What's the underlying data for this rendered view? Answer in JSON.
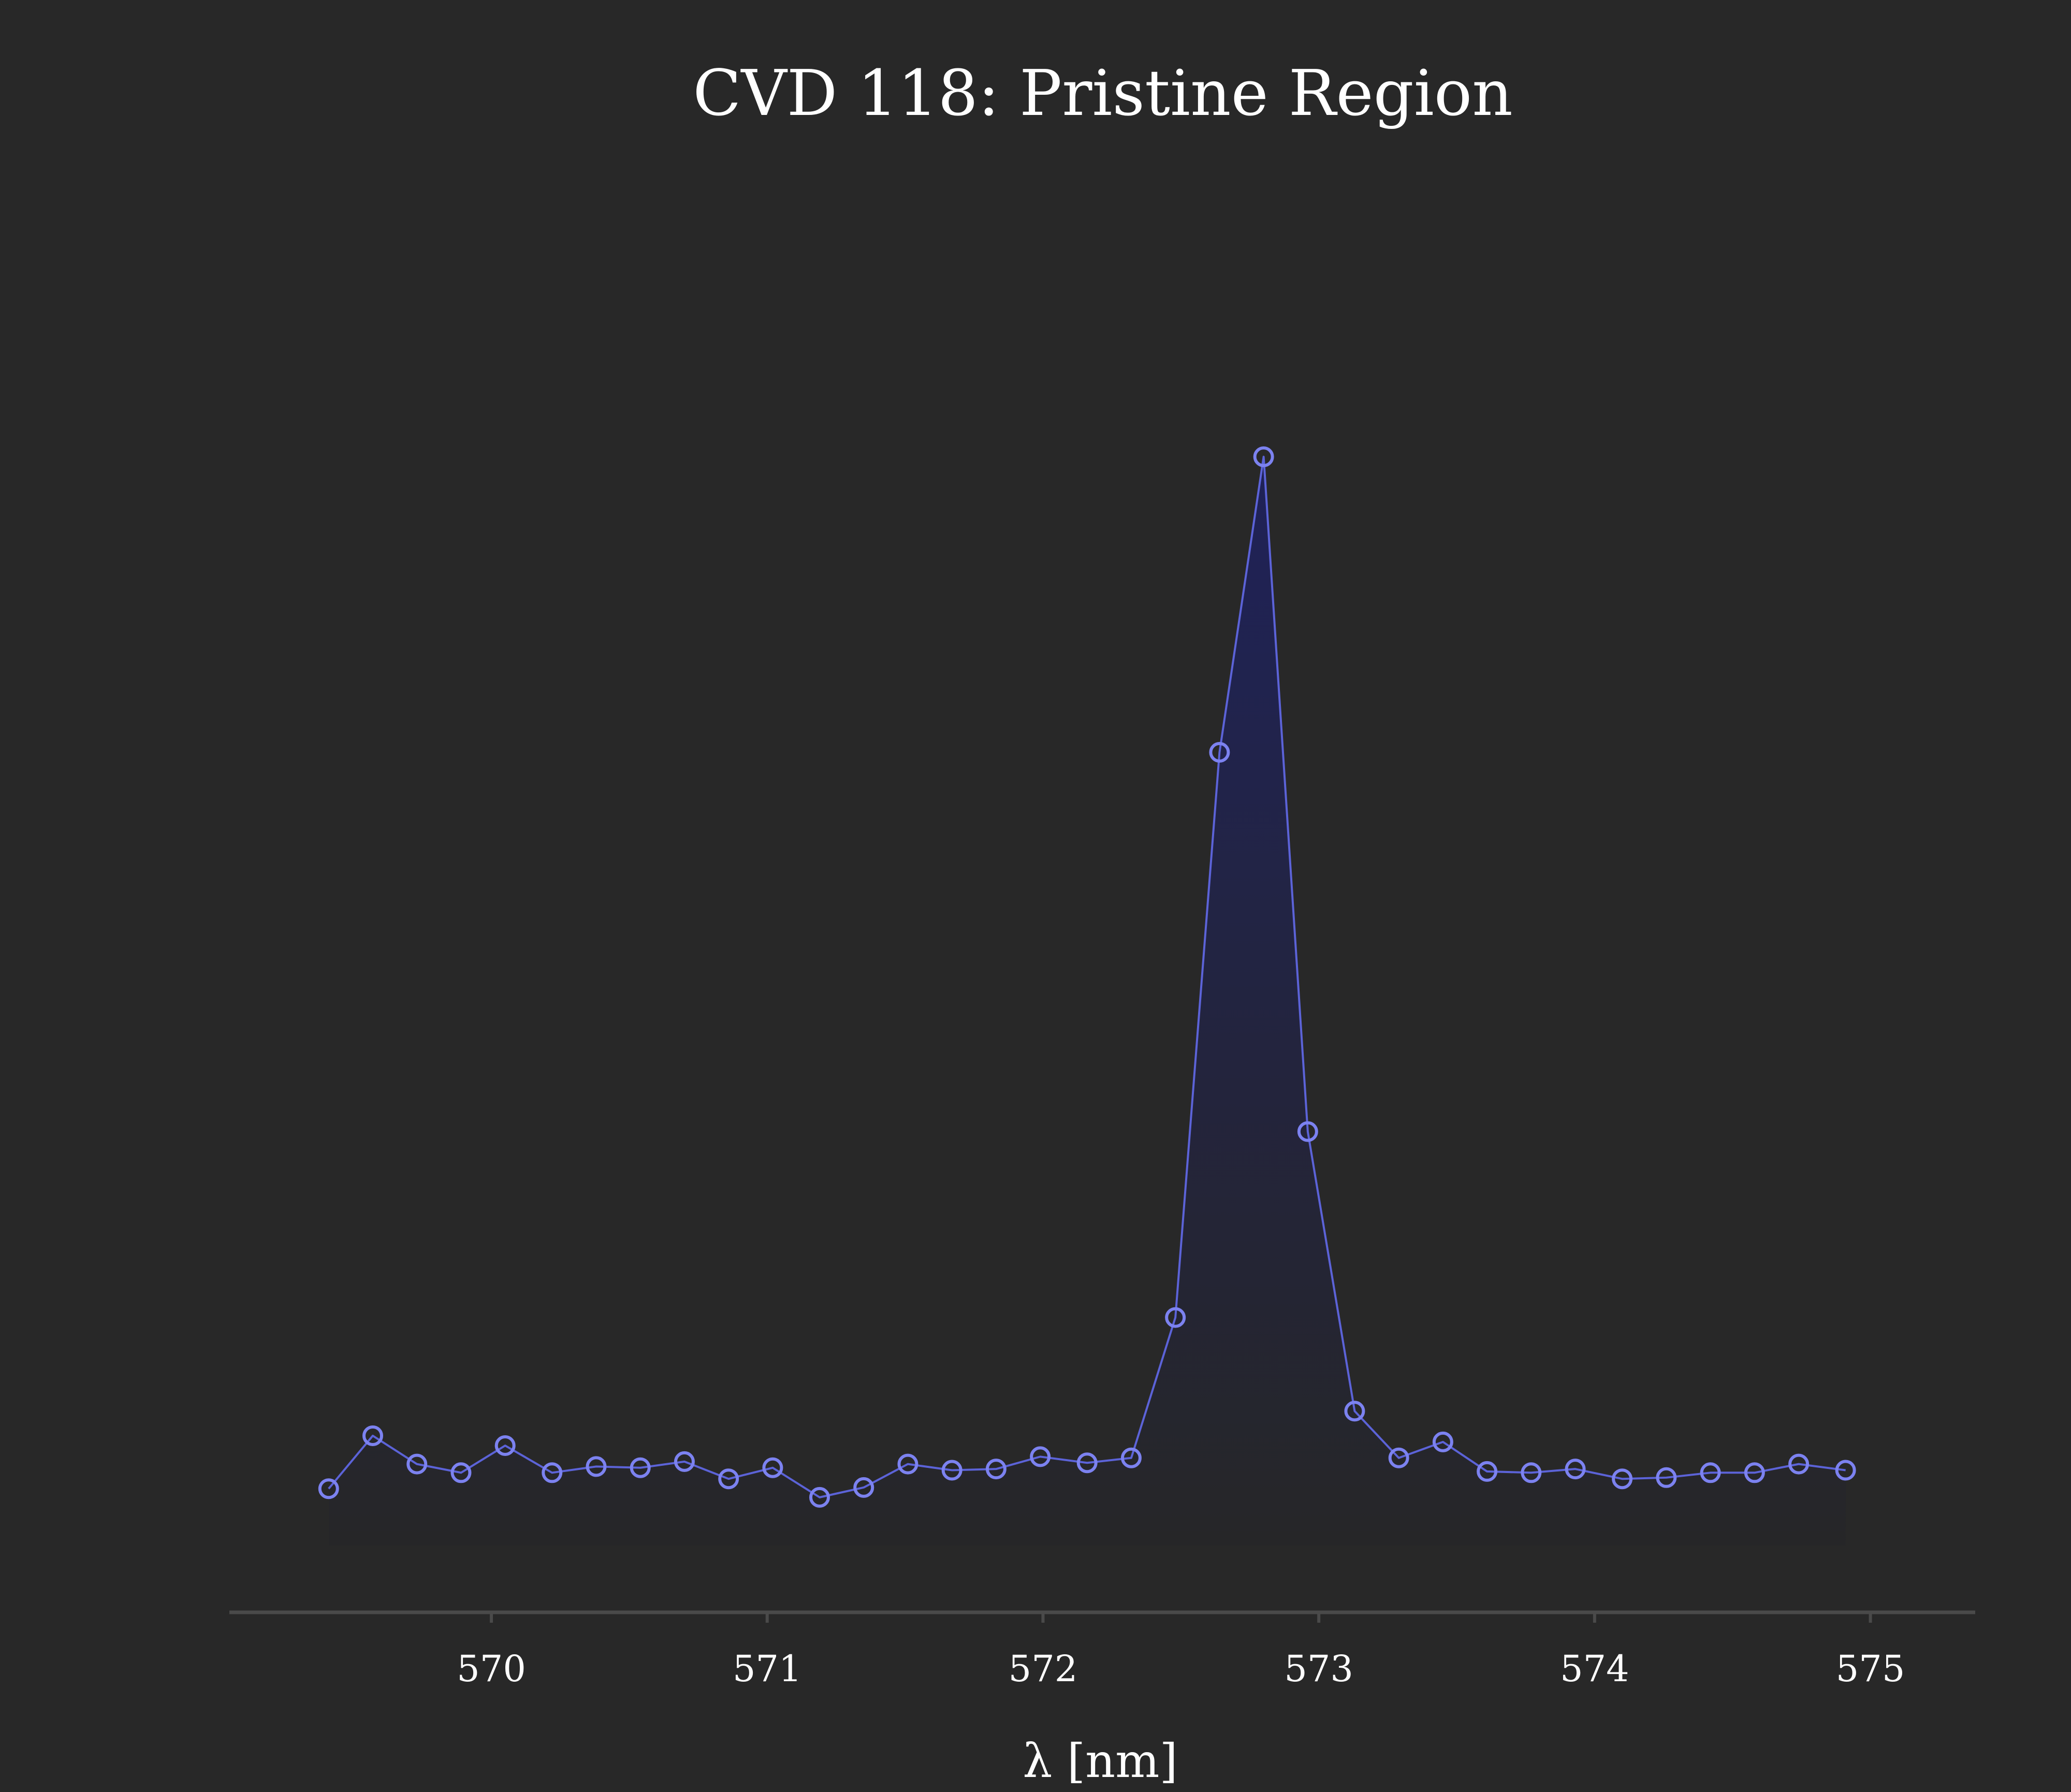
{
  "chart_data": {
    "type": "line",
    "title": "CVD 118: Pristine Region",
    "xlabel": "λ [nm]",
    "ylabel": "",
    "xlim": [
      569.05,
      575.38
    ],
    "ylim": [
      0,
      1.0
    ],
    "x_ticks": [
      570,
      571,
      572,
      573,
      574,
      575
    ],
    "x_tick_labels": [
      "570",
      "571",
      "572",
      "573",
      "574",
      "575"
    ],
    "y_axis_visible": false,
    "grid": false,
    "legend": "none",
    "marker": "open-circle",
    "fill_under": true,
    "series": [
      {
        "x": [
          569.41,
          569.57,
          569.73,
          569.89,
          570.05,
          570.22,
          570.38,
          570.54,
          570.7,
          570.86,
          571.02,
          571.19,
          571.35,
          571.51,
          571.67,
          571.83,
          571.99,
          572.16,
          572.32,
          572.48,
          572.64,
          572.8,
          572.96,
          573.13,
          573.29,
          573.45,
          573.61,
          573.77,
          573.93,
          574.1,
          574.26,
          574.42,
          574.58,
          574.74,
          574.91
        ],
        "y": [
          0.01,
          0.053,
          0.03,
          0.023,
          0.045,
          0.023,
          0.028,
          0.027,
          0.032,
          0.018,
          0.027,
          0.003,
          0.011,
          0.03,
          0.025,
          0.026,
          0.036,
          0.031,
          0.035,
          0.149,
          0.608,
          0.848,
          0.3,
          0.073,
          0.035,
          0.048,
          0.024,
          0.023,
          0.026,
          0.018,
          0.019,
          0.023,
          0.023,
          0.03,
          0.025
        ]
      }
    ],
    "colors": {
      "background": "#282828",
      "line": "#5c63d8",
      "marker": "#7c82f0",
      "fill_top": "#1f2258",
      "axis": "#4a4a4a",
      "text": "#ffffff"
    }
  }
}
